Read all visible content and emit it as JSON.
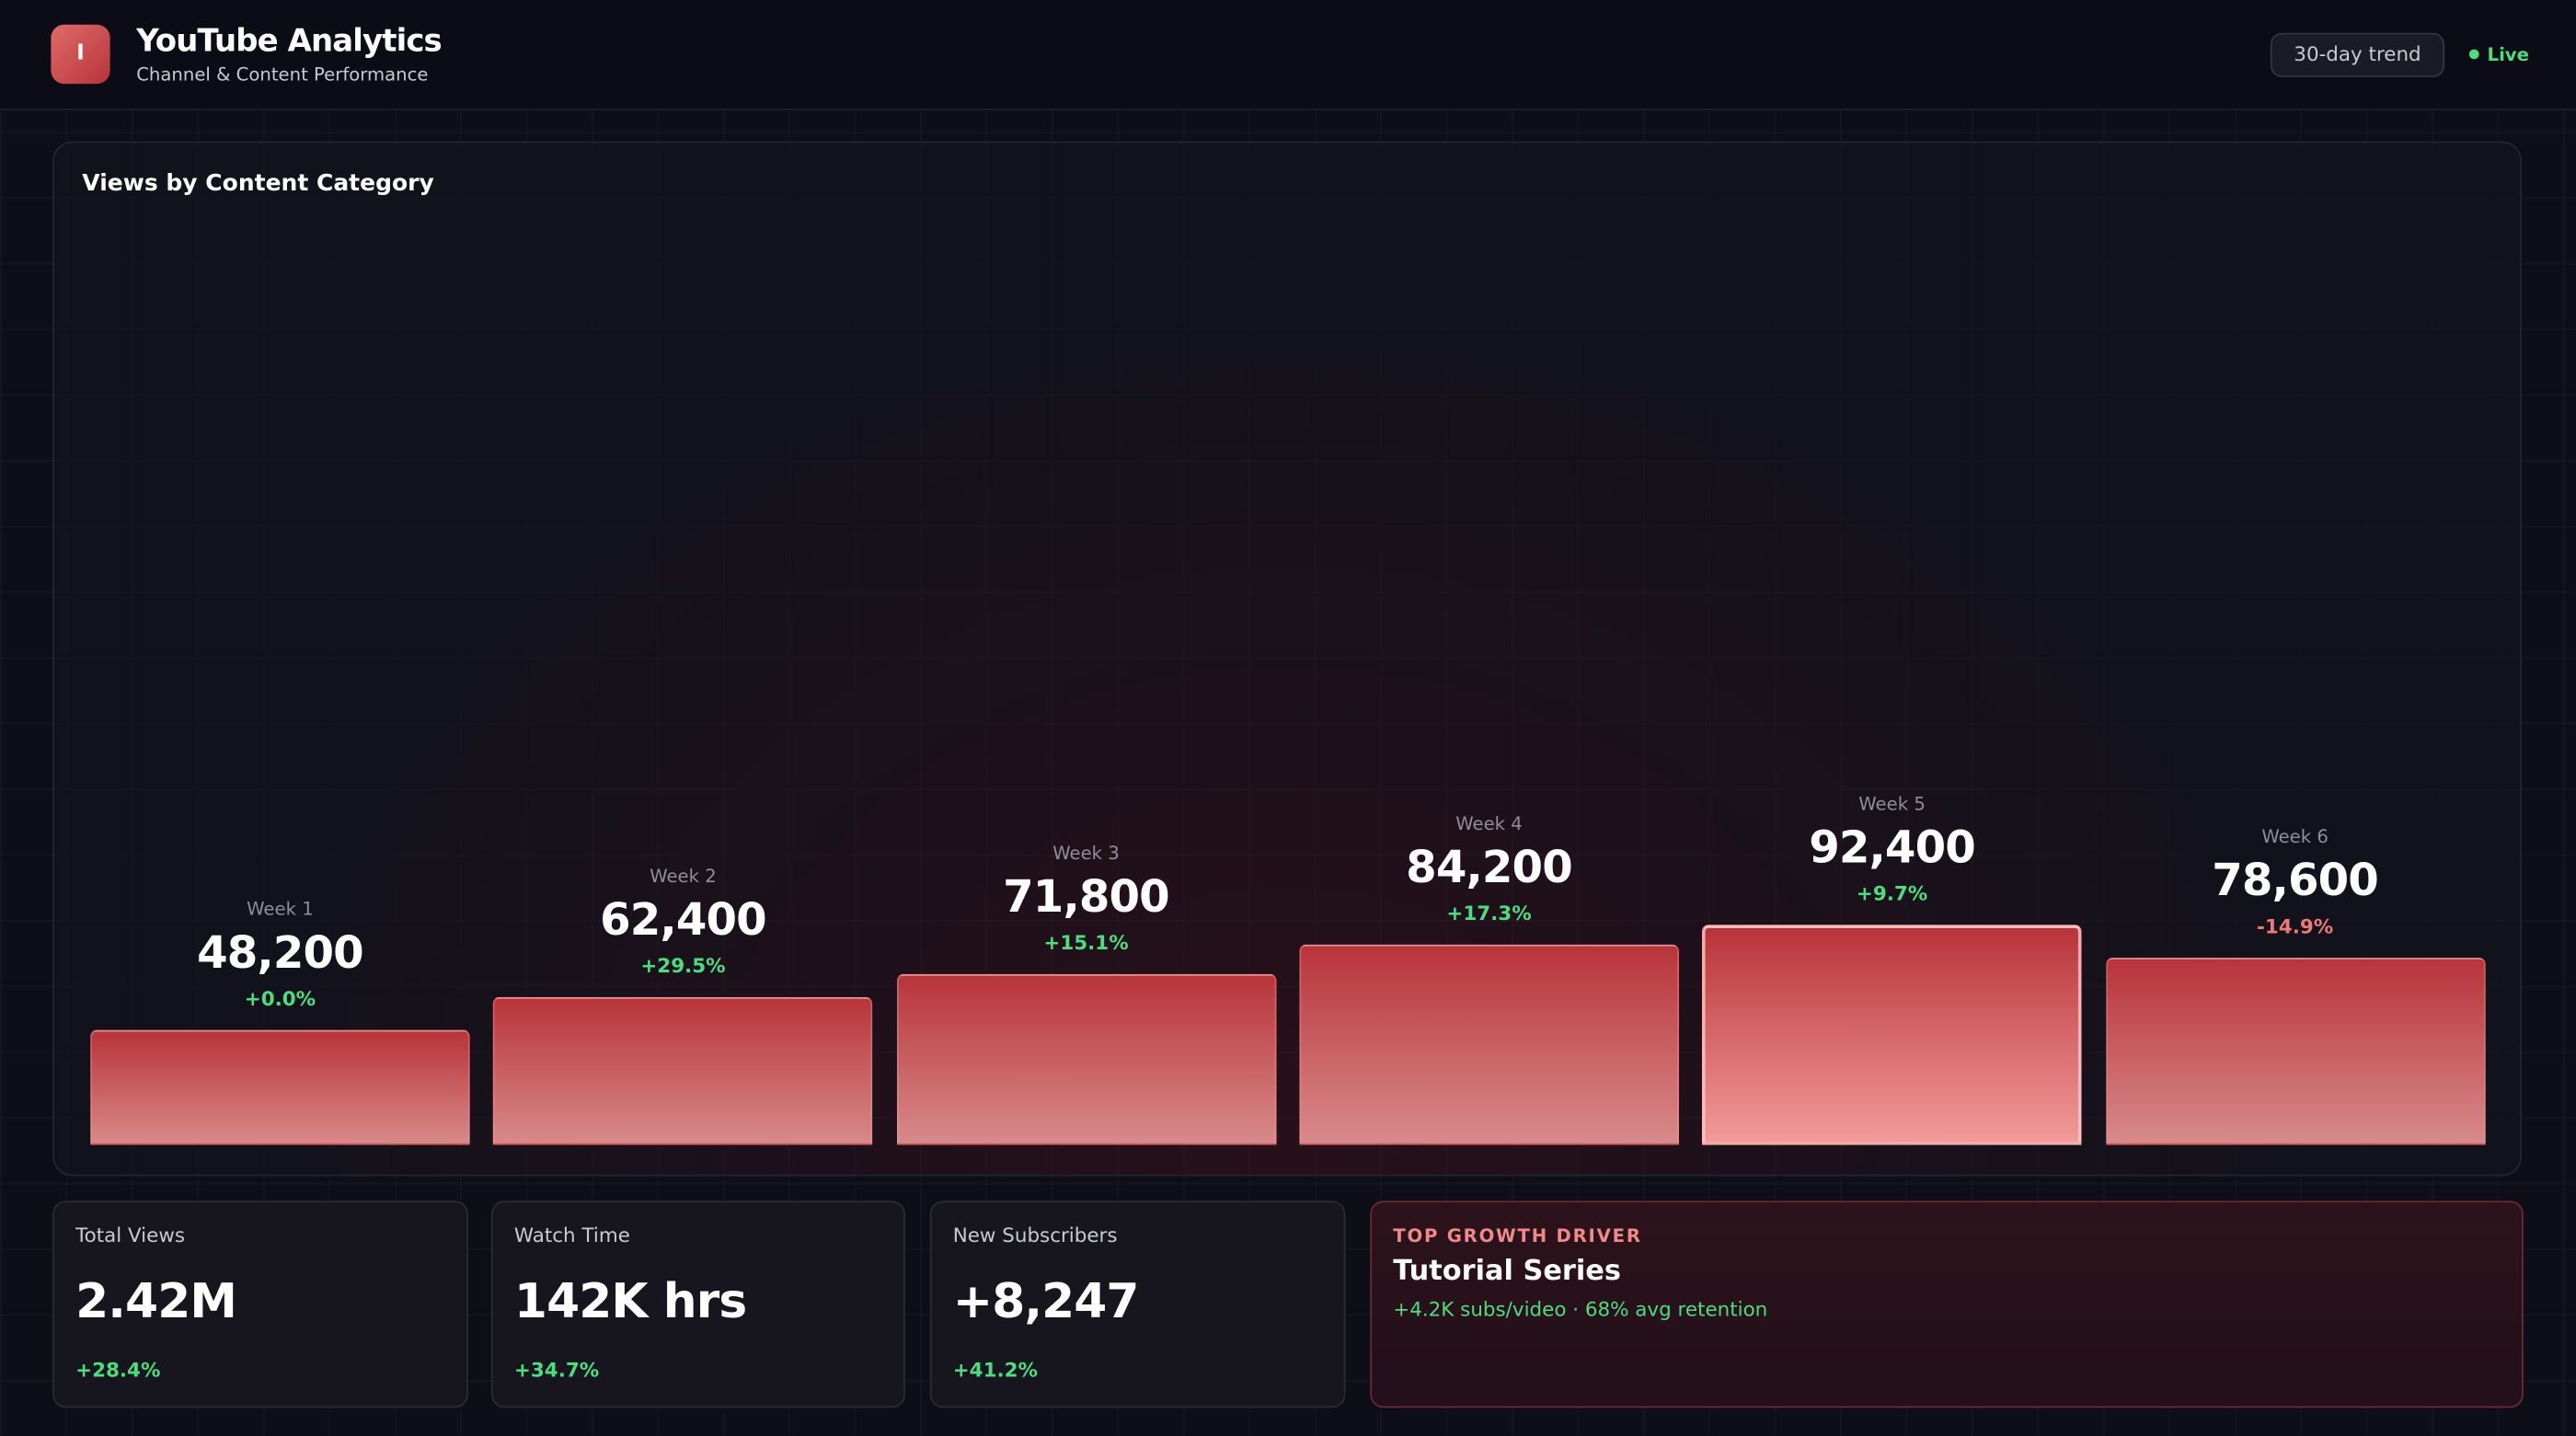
{
  "header": {
    "logo": "I",
    "title": "YouTube Analytics",
    "subtitle": "Channel & Content Performance",
    "range": "30-day trend",
    "status": "Live"
  },
  "chart_data": {
    "type": "bar",
    "title": "Views by Content Category",
    "categories": [
      "Week 1",
      "Week 2",
      "Week 3",
      "Week 4",
      "Week 5",
      "Week 6"
    ],
    "values": [
      48200,
      62400,
      71800,
      84200,
      92400,
      78600
    ],
    "value_labels": [
      "48,200",
      "62,400",
      "71,800",
      "84,200",
      "92,400",
      "78,600"
    ],
    "changes": [
      "+0.0%",
      "+29.5%",
      "+15.1%",
      "+17.3%",
      "+9.7%",
      "-14.9%"
    ],
    "color": "#b8343a"
  },
  "kpis": [
    {
      "label": "Total Views",
      "value": "2.42M",
      "change": "+28.4%"
    },
    {
      "label": "Watch Time",
      "value": "142K hrs",
      "change": "+34.7%"
    },
    {
      "label": "New Subscribers",
      "value": "+8,247",
      "change": "+41.2%"
    }
  ],
  "growth": {
    "kicker": "TOP GROWTH DRIVER",
    "title": "Tutorial Series",
    "detail": "+4.2K subs/video · 68% avg retention"
  }
}
